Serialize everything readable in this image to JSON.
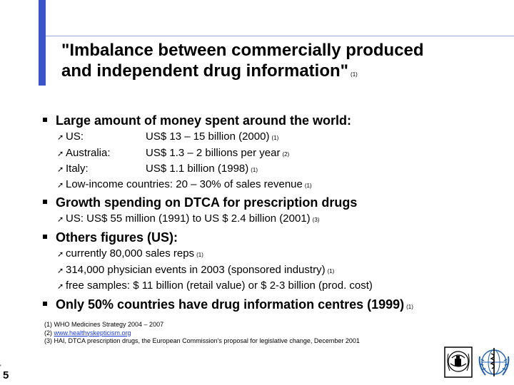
{
  "title": {
    "line1": "\"Imbalance between commercially produced",
    "line2": "and independent drug information\"",
    "ref": "(1)"
  },
  "bullets": [
    {
      "text": "Large amount of money spent around the world:",
      "subs": [
        {
          "label": "US:",
          "value": "US$ 13 – 15 billion (2000)",
          "ref": "(1)"
        },
        {
          "label": "Australia:",
          "value": "US$  1.3 – 2 billions per year",
          "ref": "(2)"
        },
        {
          "label": "Italy:",
          "value": "US$ 1.1 billion (1998)",
          "ref": "(1)"
        },
        {
          "text": "Low-income countries: 20 – 30% of sales revenue",
          "ref": "(1)"
        }
      ]
    },
    {
      "text": "Growth spending on DTCA for prescription drugs",
      "subs": [
        {
          "text": "US: US$ 55 million (1991) to US $ 2.4 billion (2001)",
          "ref": "(3)"
        }
      ]
    },
    {
      "text": "Others figures (US):",
      "subs": [
        {
          "text": "currently 80,000 sales reps",
          "ref": "(1)"
        },
        {
          "text": "314,000 physician events in 2003 (sponsored industry)",
          "ref": "(1)"
        },
        {
          "text": "free samples: $ 11 billion (retail value) or $ 2-3 billion (prod. cost)"
        }
      ]
    },
    {
      "text": "Only 50% countries have drug information centres (1999)",
      "ref": "(1)",
      "subs": []
    }
  ],
  "footnotes": {
    "n1": "(1) WHO Medicines Strategy 2004 – 2007",
    "n2_prefix": "(2) ",
    "n2_link": "www.healthyskepticism.org",
    "n3": "(3) HAI, DTCA prescription drugs, the European Commission's proposal for legislative change, December 2001"
  },
  "page_number": "5",
  "corner_mark": "'",
  "icons": {
    "sub_bullet": "arrow-bullet-icon",
    "logo_left": "medicines-logo-icon",
    "logo_right": "who-emblem-icon"
  },
  "colors": {
    "accent": "#3b55c9",
    "link": "#1a3bd1"
  }
}
